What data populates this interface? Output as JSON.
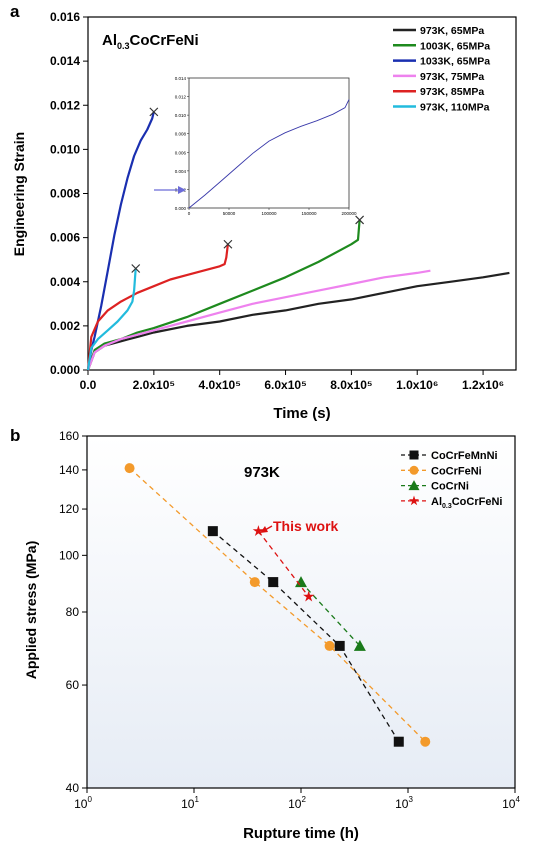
{
  "chart_data": [
    {
      "type": "line",
      "panel_label": "a",
      "title": "Al0.3CoCrFeNi",
      "title_main": "Al",
      "title_sub": "0.3",
      "title_rest": "CoCrFeNi",
      "xlabel": "Time (s)",
      "ylabel": "Engineering Strain",
      "xlim": [
        0,
        1300000
      ],
      "ylim": [
        0,
        0.016
      ],
      "xticks": [
        0,
        200000,
        400000,
        600000,
        800000,
        1000000,
        1200000
      ],
      "xtick_labels": [
        "0.0",
        "2.0x10⁵",
        "4.0x10⁵",
        "6.0x10⁵",
        "8.0x10⁵",
        "1.0x10⁶",
        "1.2x10⁶"
      ],
      "yticks": [
        0,
        0.002,
        0.004,
        0.006,
        0.008,
        0.01,
        0.012,
        0.014,
        0.016
      ],
      "ytick_labels": [
        "0.000",
        "0.002",
        "0.004",
        "0.006",
        "0.008",
        "0.010",
        "0.012",
        "0.014",
        "0.016"
      ],
      "legend_position": "top-right",
      "series": [
        {
          "name": "973K, 65MPa",
          "color": "#222222",
          "rupture": false,
          "x": [
            0,
            20000,
            50000,
            100000,
            150000,
            200000,
            300000,
            400000,
            500000,
            600000,
            700000,
            800000,
            900000,
            1000000,
            1100000,
            1200000,
            1280000
          ],
          "y": [
            0,
            0.0008,
            0.0011,
            0.0013,
            0.0015,
            0.0017,
            0.002,
            0.0022,
            0.0025,
            0.0027,
            0.003,
            0.0032,
            0.0035,
            0.0038,
            0.004,
            0.0042,
            0.0044
          ]
        },
        {
          "name": "1003K, 65MPa",
          "color": "#1e8a1e",
          "rupture": true,
          "x": [
            0,
            20000,
            50000,
            100000,
            150000,
            200000,
            300000,
            400000,
            500000,
            600000,
            700000,
            800000,
            820000,
            825000
          ],
          "y": [
            0,
            0.0009,
            0.0012,
            0.0014,
            0.0017,
            0.0019,
            0.0024,
            0.003,
            0.0036,
            0.0042,
            0.0049,
            0.0057,
            0.0059,
            0.0068
          ]
        },
        {
          "name": "1033K, 65MPa",
          "color": "#1a2fb0",
          "rupture": true,
          "x": [
            0,
            10000,
            20000,
            40000,
            60000,
            80000,
            100000,
            120000,
            140000,
            160000,
            180000,
            195000,
            200000
          ],
          "y": [
            0,
            0.0009,
            0.0015,
            0.0029,
            0.0045,
            0.0061,
            0.0075,
            0.0087,
            0.0097,
            0.0104,
            0.0109,
            0.0114,
            0.0117
          ]
        },
        {
          "name": "973K, 75MPa",
          "color": "#ee82ee",
          "rupture": false,
          "x": [
            0,
            20000,
            50000,
            100000,
            200000,
            300000,
            400000,
            500000,
            600000,
            700000,
            800000,
            900000,
            1000000,
            1040000
          ],
          "y": [
            0,
            0.0008,
            0.0011,
            0.0014,
            0.0018,
            0.0022,
            0.0026,
            0.003,
            0.0033,
            0.0036,
            0.0039,
            0.0042,
            0.0044,
            0.0045
          ]
        },
        {
          "name": "973K, 85MPa",
          "color": "#dd2222",
          "rupture": true,
          "x": [
            0,
            10000,
            30000,
            60000,
            100000,
            150000,
            200000,
            250000,
            300000,
            350000,
            400000,
            415000,
            420000,
            425000
          ],
          "y": [
            0,
            0.0015,
            0.0022,
            0.0027,
            0.0031,
            0.0035,
            0.0038,
            0.0041,
            0.0043,
            0.0045,
            0.0047,
            0.0048,
            0.0051,
            0.0057
          ]
        },
        {
          "name": "973K, 110MPa",
          "color": "#22bbdd",
          "rupture": true,
          "x": [
            0,
            10000,
            30000,
            60000,
            90000,
            120000,
            135000,
            140000,
            145000
          ],
          "y": [
            0,
            0.001,
            0.0014,
            0.0018,
            0.0022,
            0.0027,
            0.0031,
            0.0036,
            0.0046
          ]
        }
      ],
      "inset": {
        "series_name": "1033K, 65MPa",
        "color": "#3a3aaa",
        "xlim": [
          0,
          200000
        ],
        "ylim": [
          0,
          0.014
        ],
        "xticks": [
          0,
          50000,
          100000,
          150000,
          200000
        ],
        "xtick_labels": [
          "0",
          "50000",
          "100000",
          "150000",
          "200000"
        ],
        "yticks": [
          0,
          0.002,
          0.004,
          0.006,
          0.008,
          0.01,
          0.012,
          0.014
        ],
        "ytick_labels": [
          "0.000",
          "0.002",
          "0.004",
          "0.006",
          "0.008",
          "0.010",
          "0.012",
          "0.014"
        ],
        "x": [
          0,
          20000,
          40000,
          60000,
          80000,
          100000,
          120000,
          140000,
          160000,
          180000,
          195000,
          200000
        ],
        "y": [
          0,
          0.0014,
          0.0029,
          0.0044,
          0.0059,
          0.0072,
          0.0081,
          0.0088,
          0.0094,
          0.0101,
          0.0108,
          0.0117
        ]
      }
    },
    {
      "type": "scatter",
      "panel_label": "b",
      "title": "973K",
      "xlabel": "Rupture time (h)",
      "ylabel": "Applied stress (MPa)",
      "xscale": "log",
      "yscale": "log",
      "xlim": [
        1,
        10000
      ],
      "ylim": [
        40,
        160
      ],
      "xticks": [
        1,
        10,
        100,
        1000,
        10000
      ],
      "xtick_base": "10",
      "xtick_exps": [
        "0",
        "1",
        "2",
        "3",
        "4"
      ],
      "yticks": [
        40,
        60,
        80,
        100,
        120,
        140,
        160
      ],
      "ytick_labels": [
        "40",
        "60",
        "80",
        "100",
        "120",
        "140",
        "160"
      ],
      "legend_position": "top-right",
      "annotation": "This work",
      "series": [
        {
          "name": "CoCrFeMnNi",
          "color": "#111111",
          "marker": "square",
          "x": [
            15,
            55,
            230,
            820
          ],
          "y": [
            110,
            90,
            70,
            48
          ]
        },
        {
          "name": "CoCrFeNi",
          "color": "#f39a2b",
          "marker": "circle",
          "x": [
            2.5,
            37,
            185,
            1450
          ],
          "y": [
            141,
            90,
            70,
            48
          ]
        },
        {
          "name": "CoCrNi",
          "color": "#1a7a1a",
          "marker": "triangle",
          "x": [
            100,
            355
          ],
          "y": [
            90,
            70
          ]
        },
        {
          "name": "Al0.3CoCrFeNi",
          "name_main": "Al",
          "name_sub": "0.3",
          "name_rest": "CoCrFeNi",
          "color": "#dd1111",
          "marker": "star",
          "x": [
            40,
            118
          ],
          "y": [
            110,
            85
          ]
        }
      ]
    }
  ]
}
